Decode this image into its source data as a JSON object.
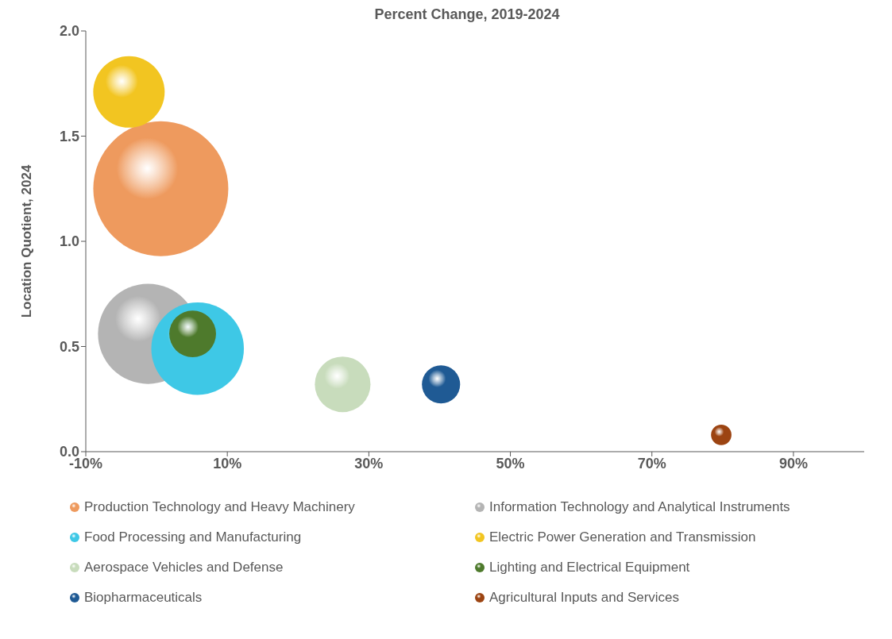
{
  "chart_data": {
    "type": "bubble",
    "title": "Percent Change, 2019-2024",
    "ylabel": "Location Quotient, 2024",
    "xlim": [
      -10,
      100
    ],
    "xticks": [
      {
        "value": -10,
        "label": "-10%"
      },
      {
        "value": 10,
        "label": "10%"
      },
      {
        "value": 30,
        "label": "30%"
      },
      {
        "value": 50,
        "label": "50%"
      },
      {
        "value": 70,
        "label": "70%"
      },
      {
        "value": 90,
        "label": "90%"
      }
    ],
    "ylim": [
      0,
      2
    ],
    "yticks": [
      {
        "value": 0,
        "label": "0.0"
      },
      {
        "value": 0.5,
        "label": "0.5"
      },
      {
        "value": 1,
        "label": "1.0"
      },
      {
        "value": 1.5,
        "label": "1.5"
      },
      {
        "value": 2,
        "label": "2.0"
      }
    ],
    "grid": false,
    "legend": "bottom",
    "series": [
      {
        "name": "Production Technology and Heavy Machinery",
        "color": "#ee9a5e",
        "x": [
          0.6
        ],
        "values": [
          1.25
        ],
        "sizes": [
          1
        ]
      },
      {
        "name": "Information Technology and Analytical Instruments",
        "color": "#b4b4b4",
        "x": [
          -1.2
        ],
        "values": [
          0.56
        ],
        "sizes": [
          0.55
        ]
      },
      {
        "name": "Food Processing and Manufacturing",
        "color": "#3ec8e6",
        "x": [
          5.8
        ],
        "values": [
          0.49
        ],
        "sizes": [
          0.47
        ]
      },
      {
        "name": "Electric Power Generation and Transmission",
        "color": "#f2c521",
        "x": [
          -3.9
        ],
        "values": [
          1.71
        ],
        "sizes": [
          0.28
        ]
      },
      {
        "name": "Aerospace Vehicles and Defense",
        "color": "#c8dcbc",
        "x": [
          26.3
        ],
        "values": [
          0.32
        ],
        "sizes": [
          0.17
        ]
      },
      {
        "name": "Lighting and Electrical Equipment",
        "color": "#4e7a2c",
        "x": [
          5.1
        ],
        "values": [
          0.56
        ],
        "sizes": [
          0.12
        ]
      },
      {
        "name": "Biopharmaceuticals",
        "color": "#1f5a94",
        "x": [
          40.2
        ],
        "values": [
          0.32
        ],
        "sizes": [
          0.08
        ]
      },
      {
        "name": "Agricultural Inputs and Services",
        "color": "#9c4412",
        "x": [
          79.8
        ],
        "values": [
          0.08
        ],
        "sizes": [
          0.023
        ]
      }
    ]
  }
}
